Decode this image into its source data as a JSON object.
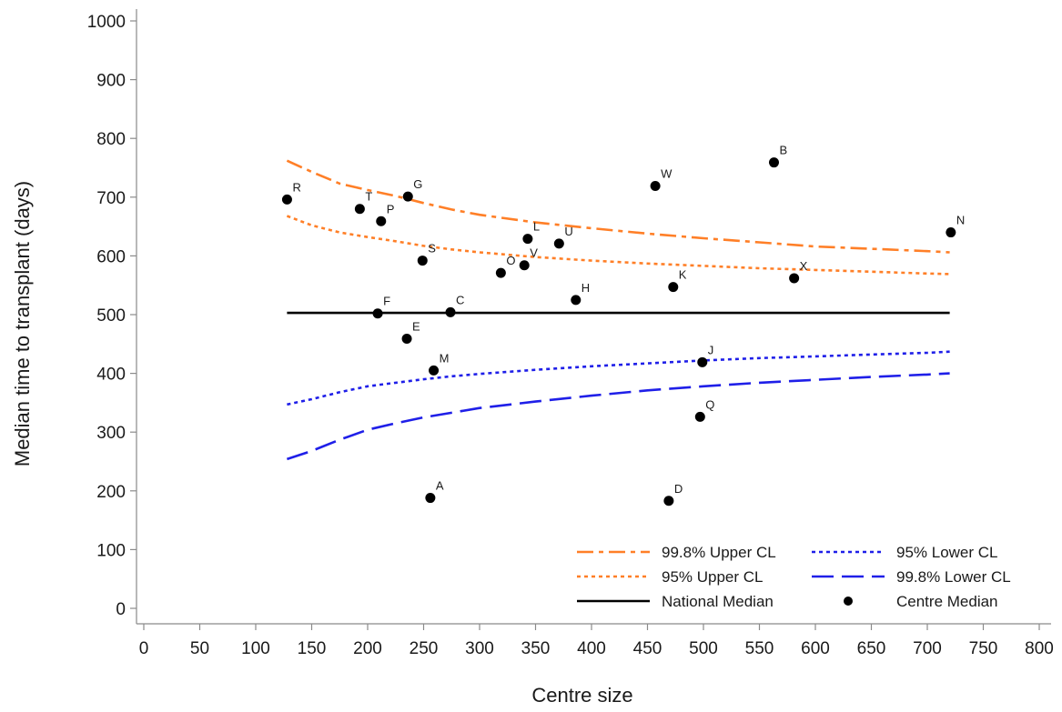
{
  "chart_data": {
    "type": "scatter",
    "title": "",
    "xlabel": "Centre size",
    "ylabel": "Median time to transplant (days)",
    "xlim": [
      0,
      800
    ],
    "ylim": [
      0,
      1000
    ],
    "x_ticks": [
      0,
      50,
      100,
      150,
      200,
      250,
      300,
      350,
      400,
      450,
      500,
      550,
      600,
      650,
      700,
      750,
      800
    ],
    "y_ticks": [
      0,
      100,
      200,
      300,
      400,
      500,
      600,
      700,
      800,
      900,
      1000
    ],
    "grid": false,
    "legend_position": "bottom-right",
    "lines": [
      {
        "name": "99.8% Upper CL",
        "color": "#FF7F27",
        "dash": "dashdot",
        "x": [
          128,
          150,
          175,
          200,
          225,
          250,
          275,
          300,
          350,
          400,
          450,
          500,
          550,
          600,
          650,
          700,
          720
        ],
        "y": [
          762,
          743,
          723,
          712,
          702,
          690,
          679,
          670,
          657,
          647,
          638,
          630,
          623,
          616,
          612,
          608,
          606
        ]
      },
      {
        "name": "95% Upper CL",
        "color": "#FF7F27",
        "dash": "dot",
        "x": [
          128,
          150,
          175,
          200,
          225,
          250,
          275,
          300,
          350,
          400,
          450,
          500,
          550,
          600,
          650,
          700,
          720
        ],
        "y": [
          668,
          652,
          640,
          632,
          625,
          617,
          611,
          606,
          598,
          592,
          587,
          583,
          579,
          576,
          573,
          570,
          569
        ]
      },
      {
        "name": "National Median",
        "color": "#000000",
        "dash": "solid",
        "x": [
          128,
          720
        ],
        "y": [
          503,
          503
        ]
      },
      {
        "name": "95% Lower CL",
        "color": "#1F1FE8",
        "dash": "dot",
        "x": [
          128,
          150,
          175,
          200,
          225,
          250,
          275,
          300,
          350,
          400,
          450,
          500,
          550,
          600,
          650,
          700,
          720
        ],
        "y": [
          347,
          356,
          368,
          378,
          384,
          390,
          395,
          399,
          406,
          412,
          417,
          422,
          426,
          429,
          432,
          435,
          437
        ]
      },
      {
        "name": "99.8% Lower CL",
        "color": "#1F1FE8",
        "dash": "longdash",
        "x": [
          128,
          150,
          175,
          200,
          225,
          250,
          275,
          300,
          350,
          400,
          450,
          500,
          550,
          600,
          650,
          700,
          720
        ],
        "y": [
          254,
          268,
          287,
          304,
          315,
          325,
          333,
          341,
          352,
          362,
          371,
          378,
          384,
          389,
          394,
          398,
          400
        ]
      }
    ],
    "points_series_name": "Centre Median",
    "points": [
      {
        "label": "A",
        "x": 256,
        "y": 188
      },
      {
        "label": "B",
        "x": 563,
        "y": 759
      },
      {
        "label": "C",
        "x": 274,
        "y": 504
      },
      {
        "label": "D",
        "x": 469,
        "y": 183
      },
      {
        "label": "E",
        "x": 235,
        "y": 459
      },
      {
        "label": "F",
        "x": 209,
        "y": 502
      },
      {
        "label": "G",
        "x": 236,
        "y": 701
      },
      {
        "label": "H",
        "x": 386,
        "y": 525
      },
      {
        "label": "J",
        "x": 499,
        "y": 419
      },
      {
        "label": "K",
        "x": 473,
        "y": 547
      },
      {
        "label": "L",
        "x": 343,
        "y": 629
      },
      {
        "label": "M",
        "x": 259,
        "y": 405
      },
      {
        "label": "N",
        "x": 721,
        "y": 640
      },
      {
        "label": "O",
        "x": 319,
        "y": 571
      },
      {
        "label": "P",
        "x": 212,
        "y": 659
      },
      {
        "label": "Q",
        "x": 497,
        "y": 326
      },
      {
        "label": "R",
        "x": 128,
        "y": 696
      },
      {
        "label": "S",
        "x": 249,
        "y": 592
      },
      {
        "label": "T",
        "x": 193,
        "y": 680
      },
      {
        "label": "U",
        "x": 371,
        "y": 621
      },
      {
        "label": "V",
        "x": 340,
        "y": 584
      },
      {
        "label": "W",
        "x": 457,
        "y": 719
      },
      {
        "label": "X",
        "x": 581,
        "y": 562
      }
    ]
  },
  "legend": {
    "items": [
      {
        "label": "99.8% Upper CL",
        "color": "#FF7F27",
        "dash": "dashdot"
      },
      {
        "label": "95% Lower CL",
        "color": "#1F1FE8",
        "dash": "dot"
      },
      {
        "label": "95% Upper CL",
        "color": "#FF7F27",
        "dash": "dot"
      },
      {
        "label": "99.8% Lower CL",
        "color": "#1F1FE8",
        "dash": "longdash"
      },
      {
        "label": "National Median",
        "color": "#000000",
        "dash": "solid"
      },
      {
        "label": "Centre Median",
        "color": "#000000",
        "dash": "marker"
      }
    ]
  }
}
